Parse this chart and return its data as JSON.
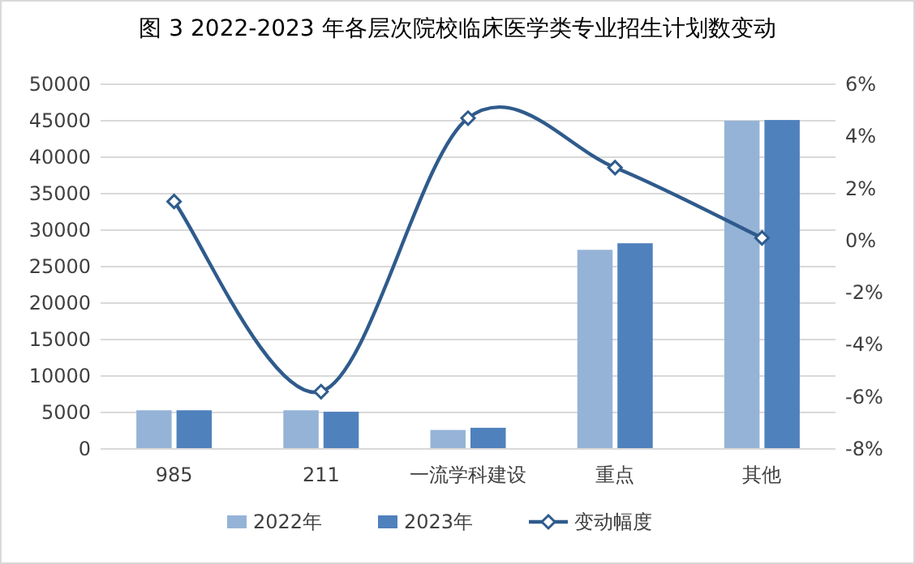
{
  "chart_data": {
    "type": "bar",
    "title": "图 3 2022-2023 年各层次院校临床医学类专业招生计划数变动",
    "categories": [
      "985",
      "211",
      "一流学科建设",
      "重点",
      "其他"
    ],
    "series": [
      {
        "name": "2022年",
        "color": "#95b3d7",
        "values": [
          5300,
          5300,
          2600,
          27300,
          45000
        ]
      },
      {
        "name": "2023年",
        "color": "#4f81bd",
        "values": [
          5300,
          5100,
          2900,
          28200,
          45100
        ]
      },
      {
        "name": "变动幅度",
        "type": "line",
        "axis": "y2",
        "color": "#2f5b8c",
        "marker": "diamond",
        "values": [
          1.5,
          -5.8,
          4.7,
          2.8,
          0.1
        ]
      }
    ],
    "ylim": [
      0,
      50000
    ],
    "yticks": [
      0,
      5000,
      10000,
      15000,
      20000,
      25000,
      30000,
      35000,
      40000,
      45000,
      50000
    ],
    "y2lim": [
      -8,
      6
    ],
    "y2ticks": [
      {
        "value": -8,
        "label": "-8%"
      },
      {
        "value": -6,
        "label": "-6%"
      },
      {
        "value": -4,
        "label": "-4%"
      },
      {
        "value": -2,
        "label": "-2%"
      },
      {
        "value": 0,
        "label": "0%"
      },
      {
        "value": 2,
        "label": "2%"
      },
      {
        "value": 4,
        "label": "4%"
      },
      {
        "value": 6,
        "label": "6%"
      }
    ],
    "grid": "y",
    "legend": "bottom"
  }
}
